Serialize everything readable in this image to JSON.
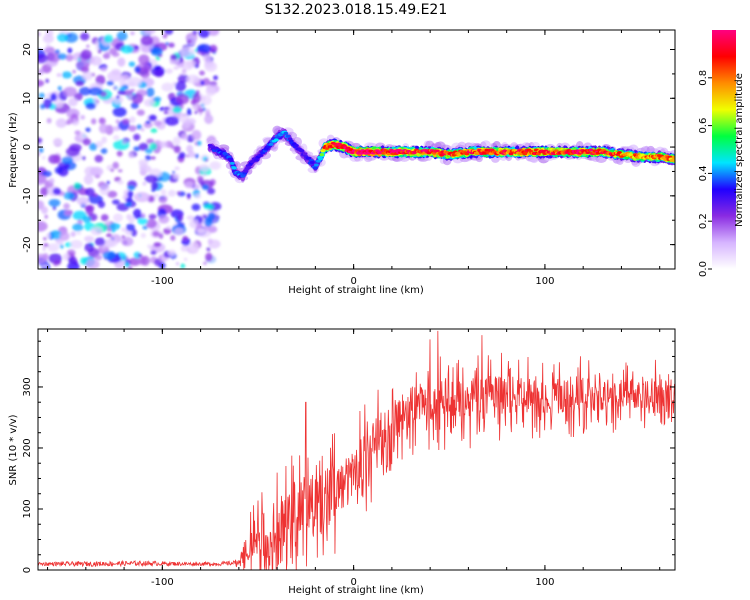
{
  "title": "S132.2023.018.15.49.E21",
  "chart_data": [
    {
      "type": "heatmap",
      "xlabel": "Height of straight line (km)",
      "ylabel": "Frequency (Hz)",
      "xlim": [
        -165,
        168
      ],
      "ylim": [
        -25,
        24
      ],
      "x_ticks": [
        -100,
        0,
        100
      ],
      "y_ticks": [
        20,
        10,
        0,
        -10,
        -20
      ],
      "colorbar": {
        "label": "Normalized spectral amplitude",
        "range": [
          0,
          1
        ],
        "ticks": [
          0.0,
          0.2,
          0.4,
          0.6,
          0.8
        ],
        "colors": [
          "#ffffff",
          "#d6b4ff",
          "#8a2be2",
          "#2000ff",
          "#00e5ff",
          "#00ff40",
          "#f0ff00",
          "#ff8c00",
          "#ff0000",
          "#ff0080"
        ]
      },
      "noise_region": {
        "x_range": [
          -165,
          -75
        ],
        "frequency_range": [
          -25,
          24
        ]
      },
      "ridge": {
        "x": [
          -75,
          -70,
          -65,
          -62,
          -58,
          -55,
          -50,
          -45,
          -40,
          -37,
          -34,
          -30,
          -25,
          -20,
          -17,
          -15,
          -10,
          -5,
          0,
          10,
          20,
          30,
          40,
          50,
          60,
          70,
          80,
          90,
          100,
          110,
          120,
          130,
          140,
          150,
          160,
          168
        ],
        "frequency": [
          0,
          -1,
          -2,
          -5,
          -6,
          -4,
          -2,
          0,
          2,
          3,
          2,
          0,
          -2,
          -4,
          -2,
          0,
          0.5,
          0,
          -1,
          -1,
          -1,
          -1,
          -1,
          -1.5,
          -1,
          -1,
          -1,
          -1,
          -1,
          -1,
          -1,
          -1,
          -1.5,
          -2,
          -2,
          -2.5
        ],
        "amplitude": [
          0.3,
          0.35,
          0.35,
          0.4,
          0.35,
          0.3,
          0.3,
          0.35,
          0.4,
          0.4,
          0.35,
          0.3,
          0.3,
          0.35,
          0.5,
          0.85,
          0.9,
          0.9,
          0.95,
          0.95,
          0.9,
          0.9,
          0.9,
          0.85,
          0.85,
          0.9,
          0.85,
          0.85,
          0.85,
          0.85,
          0.9,
          0.85,
          0.8,
          0.75,
          0.8,
          0.75
        ]
      }
    },
    {
      "type": "line",
      "xlabel": "Height of straight line (km)",
      "ylabel": "SNR (10 * v/v)",
      "xlim": [
        -165,
        168
      ],
      "ylim": [
        0,
        395
      ],
      "x_ticks": [
        -100,
        0,
        100
      ],
      "y_ticks": [
        0,
        100,
        200,
        300
      ],
      "color": "#ee3333",
      "series": [
        {
          "x": [
            -165,
            -140,
            -110,
            -85,
            -70,
            -60,
            -55,
            -50,
            -45,
            -40,
            -35,
            -30,
            -25,
            -20,
            -15,
            -10,
            -5,
            0,
            5,
            10,
            15,
            20,
            25,
            30,
            40,
            50,
            60,
            70,
            80,
            90,
            100,
            110,
            120,
            130,
            140,
            150,
            160,
            168
          ],
          "mean": [
            10,
            10,
            11,
            10,
            10,
            12,
            40,
            55,
            60,
            70,
            90,
            110,
            115,
            120,
            125,
            130,
            140,
            160,
            185,
            205,
            225,
            245,
            255,
            265,
            280,
            280,
            282,
            285,
            288,
            285,
            285,
            288,
            290,
            288,
            290,
            290,
            292,
            295
          ],
          "spread": [
            3,
            4,
            4,
            3,
            3,
            4,
            30,
            35,
            40,
            45,
            45,
            50,
            55,
            50,
            50,
            45,
            40,
            40,
            40,
            40,
            35,
            35,
            35,
            35,
            35,
            35,
            35,
            35,
            30,
            30,
            30,
            30,
            30,
            30,
            25,
            25,
            25,
            25
          ]
        }
      ],
      "peaks": [
        {
          "x": -25,
          "y": 275
        },
        {
          "x": 44,
          "y": 392
        },
        {
          "x": 67,
          "y": 385
        },
        {
          "x": 40,
          "y": 378
        }
      ]
    }
  ]
}
